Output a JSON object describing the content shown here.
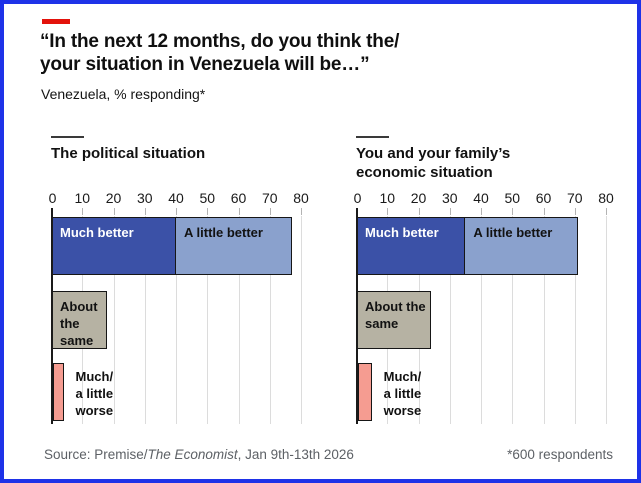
{
  "header": {
    "title": "“In the next 12 months, do you think the/\nyour situation in Venezuela will be…”",
    "subtitle": "Venezuela, % responding*"
  },
  "footer": {
    "source_prefix": "Source: Premise/",
    "source_italic": "The Economist",
    "source_suffix": ", Jan 9th-13th 2026",
    "note": "*600 respondents"
  },
  "colors": {
    "accent_red": "#e3120b",
    "frame_blue": "#1e32e8",
    "gridline": "#dcdcdc",
    "axis": "#1a1a1a",
    "segments": {
      "much_better": {
        "fill": "#3b51a7",
        "text": "#ffffff"
      },
      "a_little_better": {
        "fill": "#8aa1cd",
        "text": "#121212"
      },
      "about_the_same": {
        "fill": "#b6b2a3",
        "text": "#121212"
      },
      "much_worse": {
        "fill": "#d6211f",
        "text": "#121212"
      },
      "a_little_worse": {
        "fill": "#f59c91",
        "text": "#121212"
      }
    }
  },
  "chart_data": [
    {
      "type": "bar",
      "orientation": "horizontal",
      "title": "The political situation",
      "xlabel": "",
      "ylabel": "",
      "unit": "% responding",
      "xlim": [
        0,
        80
      ],
      "ticks": [
        0,
        10,
        20,
        30,
        40,
        50,
        60,
        70,
        80
      ],
      "grid": true,
      "rows": [
        {
          "name": "better",
          "segments": [
            {
              "name": "much_better",
              "label": "Much better",
              "value": 40
            },
            {
              "name": "a_little_better",
              "label": "A little better",
              "value": 37
            }
          ]
        },
        {
          "name": "same",
          "segments": [
            {
              "name": "about_the_same",
              "label": "About the same",
              "value": 18
            }
          ]
        },
        {
          "name": "worse",
          "outside_label": "Much/\na little\nworse",
          "segments": [
            {
              "name": "much_worse",
              "label": "",
              "value": 1
            },
            {
              "name": "a_little_worse",
              "label": "",
              "value": 3
            }
          ]
        }
      ]
    },
    {
      "type": "bar",
      "orientation": "horizontal",
      "title": "You and your family’s\neconomic situation",
      "xlabel": "",
      "ylabel": "",
      "unit": "% responding",
      "xlim": [
        0,
        80
      ],
      "ticks": [
        0,
        10,
        20,
        30,
        40,
        50,
        60,
        70,
        80
      ],
      "grid": true,
      "rows": [
        {
          "name": "better",
          "segments": [
            {
              "name": "much_better",
              "label": "Much better",
              "value": 35
            },
            {
              "name": "a_little_better",
              "label": "A little better",
              "value": 36
            }
          ]
        },
        {
          "name": "same",
          "segments": [
            {
              "name": "about_the_same",
              "label": "About the same",
              "value": 24
            }
          ]
        },
        {
          "name": "worse",
          "outside_label": "Much/\na little\nworse",
          "segments": [
            {
              "name": "much_worse",
              "label": "",
              "value": 1
            },
            {
              "name": "a_little_worse",
              "label": "",
              "value": 4
            }
          ]
        }
      ]
    }
  ]
}
